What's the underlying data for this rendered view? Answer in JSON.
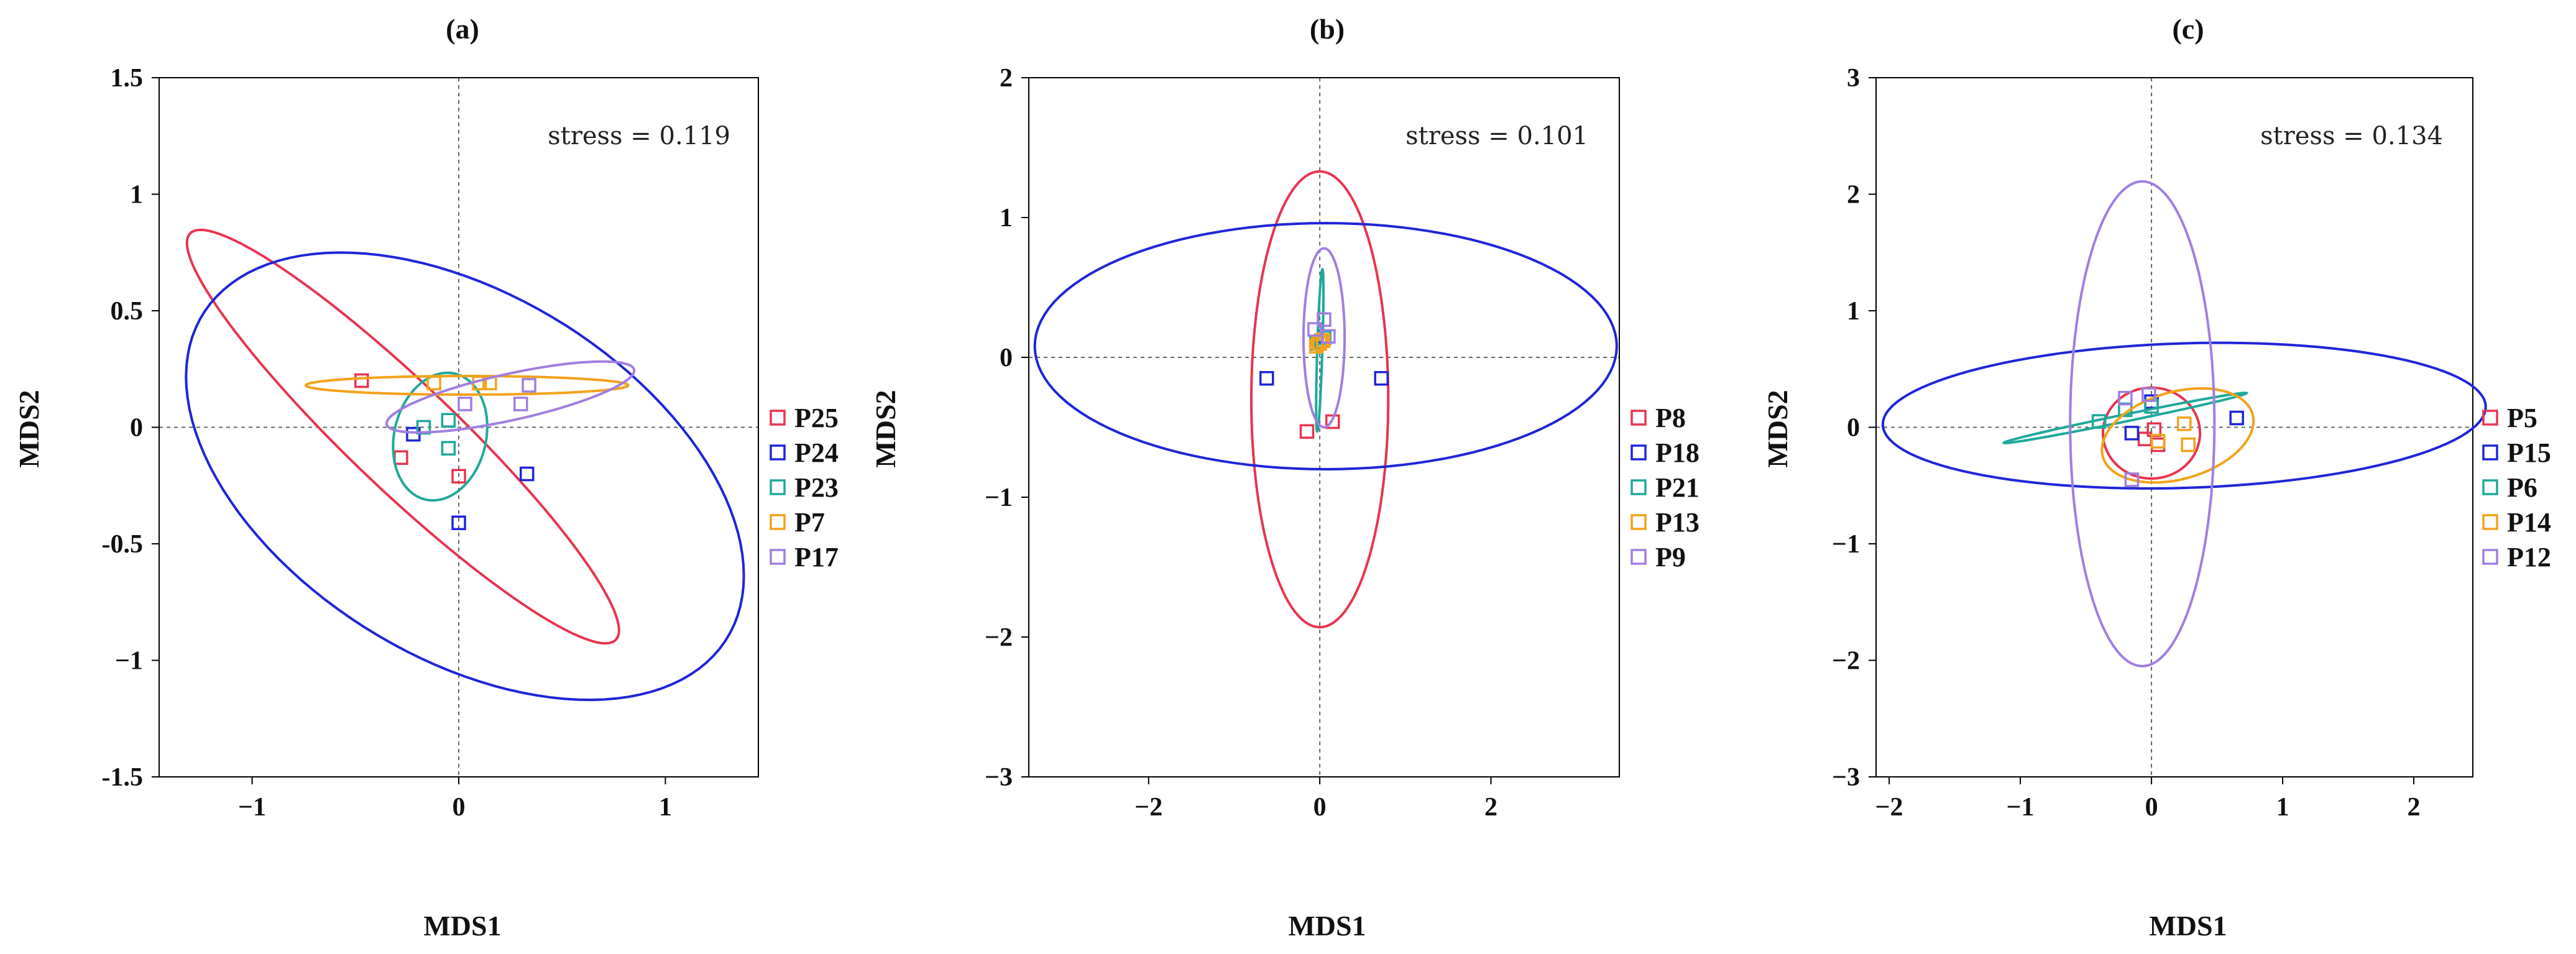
{
  "colors": {
    "red": "#e8344f",
    "blue": "#1f25d8",
    "teal": "#1fa89a",
    "orange": "#f2a21a",
    "purple": "#a07ee0"
  },
  "chart_data": [
    {
      "type": "scatter",
      "title": "(a)",
      "xlabel": "MDS1",
      "ylabel": "MDS2",
      "xlim": [
        -1.45,
        1.45
      ],
      "ylim": [
        -1.5,
        1.5
      ],
      "xticks": [
        -1,
        0,
        1
      ],
      "xtick_labels": [
        "−1",
        "0",
        "1"
      ],
      "yticks": [
        -1.5,
        -1,
        -0.5,
        0,
        0.5,
        1,
        1.5
      ],
      "ytick_labels": [
        "-1.5",
        "−1",
        "-0.5",
        "0",
        "0.5",
        "1",
        "1.5"
      ],
      "annotation": "stress = 0.119",
      "series": [
        {
          "name": "P25",
          "color": "#e8344f",
          "points": [
            [
              -0.47,
              0.2
            ],
            [
              -0.28,
              -0.13
            ],
            [
              0.0,
              -0.21
            ]
          ],
          "ellipse": {
            "cx": -0.27,
            "cy": -0.04,
            "a": 1.35,
            "b": 0.24,
            "angle": -40
          }
        },
        {
          "name": "P24",
          "color": "#1f25d8",
          "points": [
            [
              -0.22,
              -0.03
            ],
            [
              0.0,
              -0.41
            ],
            [
              0.33,
              -0.2
            ]
          ],
          "ellipse": {
            "cx": 0.03,
            "cy": -0.21,
            "a": 1.45,
            "b": 0.8,
            "angle": -26
          }
        },
        {
          "name": "P23",
          "color": "#1fa89a",
          "points": [
            [
              -0.17,
              0.0
            ],
            [
              -0.05,
              0.03
            ],
            [
              -0.05,
              -0.09
            ]
          ],
          "ellipse": {
            "cx": -0.09,
            "cy": -0.04,
            "a": 0.28,
            "b": 0.22,
            "angle": 70
          }
        },
        {
          "name": "P7",
          "color": "#f2a21a",
          "points": [
            [
              -0.12,
              0.19
            ],
            [
              0.1,
              0.19
            ],
            [
              0.15,
              0.19
            ]
          ],
          "ellipse": {
            "cx": 0.04,
            "cy": 0.18,
            "a": 0.78,
            "b": 0.04,
            "angle": 0
          }
        },
        {
          "name": "P17",
          "color": "#a07ee0",
          "points": [
            [
              0.03,
              0.1
            ],
            [
              0.3,
              0.1
            ],
            [
              0.34,
              0.18
            ]
          ],
          "ellipse": {
            "cx": 0.25,
            "cy": 0.13,
            "a": 0.61,
            "b": 0.1,
            "angle": 11
          }
        }
      ]
    },
    {
      "type": "scatter",
      "title": "(b)",
      "xlabel": "MDS1",
      "ylabel": "MDS2",
      "xlim": [
        -3.4,
        3.5
      ],
      "ylim": [
        -3,
        2
      ],
      "xticks": [
        -2,
        0,
        2
      ],
      "xtick_labels": [
        "−2",
        "0",
        "2"
      ],
      "yticks": [
        -3,
        -2,
        -1,
        0,
        1,
        2
      ],
      "ytick_labels": [
        "−3",
        "−2",
        "−1",
        "0",
        "1",
        "2"
      ],
      "annotation": "stress = 0.101",
      "series": [
        {
          "name": "P8",
          "color": "#e8344f",
          "points": [
            [
              -0.15,
              -0.53
            ],
            [
              0.15,
              -0.46
            ],
            [
              0.0,
              0.1
            ]
          ],
          "ellipse": {
            "cx": 0.0,
            "cy": -0.3,
            "a": 0.8,
            "b": 1.63,
            "angle": 0
          }
        },
        {
          "name": "P18",
          "color": "#1f25d8",
          "points": [
            [
              -0.62,
              -0.15
            ],
            [
              0.72,
              -0.15
            ],
            [
              0.05,
              0.15
            ]
          ],
          "ellipse": {
            "cx": 0.07,
            "cy": 0.08,
            "a": 3.4,
            "b": 0.88,
            "angle": 0
          }
        },
        {
          "name": "P21",
          "color": "#1fa89a",
          "points": [
            [
              -0.04,
              0.1
            ],
            [
              0.02,
              0.12
            ],
            [
              0.05,
              0.14
            ]
          ],
          "ellipse": {
            "cx": 0.0,
            "cy": 0.05,
            "a": 0.58,
            "b": 0.03,
            "angle": 87
          }
        },
        {
          "name": "P13",
          "color": "#f2a21a",
          "points": [
            [
              -0.04,
              0.08
            ],
            [
              0.0,
              0.1
            ],
            [
              0.04,
              0.12
            ]
          ],
          "ellipse": {
            "cx": 0.0,
            "cy": 0.11,
            "a": 0.1,
            "b": 0.06,
            "angle": 0
          }
        },
        {
          "name": "P9",
          "color": "#a07ee0",
          "points": [
            [
              -0.06,
              0.2
            ],
            [
              0.05,
              0.27
            ],
            [
              0.1,
              0.15
            ]
          ],
          "ellipse": {
            "cx": 0.05,
            "cy": 0.14,
            "a": 0.24,
            "b": 0.64,
            "angle": 0
          }
        }
      ]
    },
    {
      "type": "scatter",
      "title": "(c)",
      "xlabel": "MDS1",
      "ylabel": "MDS2",
      "xlim": [
        -2.1,
        2.45
      ],
      "ylim": [
        -3,
        3
      ],
      "xticks": [
        -2,
        -1,
        0,
        1,
        2
      ],
      "xtick_labels": [
        "−2",
        "−1",
        "0",
        "1",
        "2"
      ],
      "yticks": [
        -3,
        -2,
        -1,
        0,
        1,
        2,
        3
      ],
      "ytick_labels": [
        "−3",
        "−2",
        "−1",
        "0",
        "1",
        "2",
        "3"
      ],
      "annotation": "stress = 0.134",
      "series": [
        {
          "name": "P5",
          "color": "#e8344f",
          "points": [
            [
              -0.05,
              -0.1
            ],
            [
              0.02,
              -0.02
            ],
            [
              0.05,
              -0.15
            ]
          ],
          "ellipse": {
            "cx": 0.0,
            "cy": -0.05,
            "a": 0.37,
            "b": 0.39,
            "angle": 0
          }
        },
        {
          "name": "P15",
          "color": "#1f25d8",
          "points": [
            [
              -0.15,
              -0.05
            ],
            [
              0.65,
              0.08
            ],
            [
              0.0,
              0.22
            ]
          ],
          "ellipse": {
            "cx": 0.25,
            "cy": 0.1,
            "a": 2.3,
            "b": 0.62,
            "angle": 2
          }
        },
        {
          "name": "P6",
          "color": "#1fa89a",
          "points": [
            [
              -0.4,
              0.05
            ],
            [
              -0.2,
              0.15
            ],
            [
              0.0,
              0.18
            ]
          ],
          "ellipse": {
            "cx": -0.2,
            "cy": 0.08,
            "a": 0.95,
            "b": 0.03,
            "angle": 13
          }
        },
        {
          "name": "P14",
          "color": "#f2a21a",
          "points": [
            [
              0.05,
              -0.12
            ],
            [
              0.25,
              0.03
            ],
            [
              0.28,
              -0.15
            ]
          ],
          "ellipse": {
            "cx": 0.2,
            "cy": -0.07,
            "a": 0.6,
            "b": 0.37,
            "angle": 20
          }
        },
        {
          "name": "P12",
          "color": "#a07ee0",
          "points": [
            [
              -0.2,
              0.25
            ],
            [
              -0.15,
              -0.45
            ],
            [
              -0.02,
              0.28
            ]
          ],
          "ellipse": {
            "cx": -0.07,
            "cy": 0.03,
            "a": 0.55,
            "b": 2.08,
            "angle": 0
          }
        }
      ]
    }
  ]
}
